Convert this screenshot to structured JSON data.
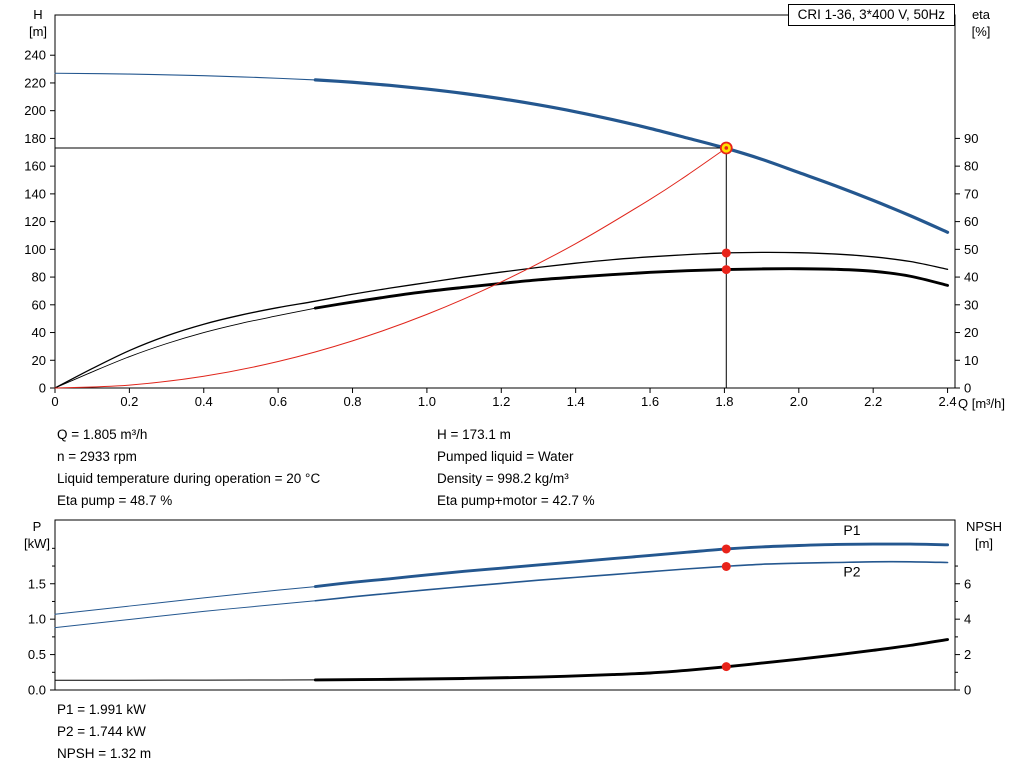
{
  "title_box": {
    "label": "CRI 1-36, 3*400 V, 50Hz"
  },
  "colors": {
    "curve_blue": "#24578f",
    "curve_black": "#000000",
    "curve_red": "#e0251b",
    "dot_red": "#e8231a",
    "op_yellow": "#ffe000",
    "axis": "#000000"
  },
  "top_info": {
    "left": [
      "Q = 1.805 m³/h",
      "n = 2933 rpm",
      "Liquid temperature during operation = 20 °C",
      "Eta pump = 48.7 %"
    ],
    "right": [
      "H = 173.1 m",
      "Pumped liquid = Water",
      "Density = 998.2 kg/m³",
      "Eta pump+motor = 42.7 %"
    ]
  },
  "bottom_info": [
    "P1 = 1.991 kW",
    "P2 = 1.744 kW",
    "NPSH = 1.32 m"
  ],
  "chart_data": [
    {
      "type": "line",
      "name": "pump-performance-chart",
      "title": "CRI 1-36, 3*400 V, 50Hz",
      "x": {
        "label": "Q [m³/h]",
        "range": [
          0,
          2.42
        ],
        "ticks": [
          0,
          0.2,
          0.4,
          0.6,
          0.8,
          1.0,
          1.2,
          1.4,
          1.6,
          1.8,
          2.0,
          2.2,
          2.4
        ],
        "tick_labels": [
          "0",
          "0.2",
          "0.4",
          "0.6",
          "0.8",
          "1.0",
          "1.2",
          "1.4",
          "1.6",
          "1.8",
          "2.0",
          "2.2",
          "2.4"
        ]
      },
      "y_left": {
        "label_lines": [
          "H",
          "[m]"
        ],
        "range": [
          0,
          269
        ],
        "ticks": [
          0,
          20,
          40,
          60,
          80,
          100,
          120,
          140,
          160,
          180,
          200,
          220,
          240
        ],
        "tick_labels": [
          "0",
          "20",
          "40",
          "60",
          "80",
          "100",
          "120",
          "140",
          "160",
          "180",
          "200",
          "220",
          "240"
        ],
        "minor_ticks": []
      },
      "y_right": {
        "label_lines": [
          "eta",
          "[%]"
        ],
        "range": [
          0,
          134.5
        ],
        "ticks": [
          0,
          10,
          20,
          30,
          40,
          50,
          60,
          70,
          80,
          90
        ],
        "tick_labels": [
          "0",
          "10",
          "20",
          "30",
          "40",
          "50",
          "60",
          "70",
          "80",
          "90"
        ],
        "minor_ticks": []
      },
      "crosshair": {
        "h_value": 173.1,
        "h_from": 0,
        "h_to": 1.805,
        "v_x": 1.805,
        "v_from": 0,
        "v_to": 173.1
      },
      "series": [
        {
          "name": "hq-out-of-range",
          "axis": "left",
          "color": "#24578f",
          "width": 1.1,
          "points": [
            [
              0,
              227
            ],
            [
              0.2,
              226.4
            ],
            [
              0.4,
              225.2
            ],
            [
              0.55,
              223.9
            ],
            [
              0.7,
              222.2
            ]
          ]
        },
        {
          "name": "hq-curve",
          "axis": "left",
          "color": "#24578f",
          "width": 3.2,
          "points": [
            [
              0.7,
              222.2
            ],
            [
              0.8,
              220.5
            ],
            [
              0.9,
              218.3
            ],
            [
              1.0,
              215.6
            ],
            [
              1.1,
              212.4
            ],
            [
              1.2,
              208.6
            ],
            [
              1.3,
              204.2
            ],
            [
              1.4,
              199.2
            ],
            [
              1.5,
              193.5
            ],
            [
              1.6,
              187.2
            ],
            [
              1.7,
              180.3
            ],
            [
              1.8,
              173.2
            ],
            [
              1.9,
              165.0
            ],
            [
              2.0,
              155.4
            ],
            [
              2.1,
              145.7
            ],
            [
              2.2,
              135.3
            ],
            [
              2.3,
              124.2
            ],
            [
              2.4,
              112.3
            ]
          ]
        },
        {
          "name": "eta-pump-curve",
          "axis": "right",
          "color": "#000000",
          "width": 1.3,
          "points": [
            [
              0,
              0
            ],
            [
              0.1,
              7
            ],
            [
              0.2,
              13.5
            ],
            [
              0.3,
              18.8
            ],
            [
              0.4,
              23
            ],
            [
              0.5,
              26.3
            ],
            [
              0.6,
              29
            ],
            [
              0.7,
              31.3
            ],
            [
              0.8,
              33.8
            ],
            [
              0.9,
              36
            ],
            [
              1.0,
              38
            ],
            [
              1.1,
              40
            ],
            [
              1.2,
              41.8
            ],
            [
              1.3,
              43.5
            ],
            [
              1.4,
              45
            ],
            [
              1.5,
              46.3
            ],
            [
              1.6,
              47.3
            ],
            [
              1.7,
              48.1
            ],
            [
              1.8,
              48.7
            ],
            [
              1.9,
              48.9
            ],
            [
              2.0,
              48.8
            ],
            [
              2.1,
              48.3
            ],
            [
              2.2,
              47.3
            ],
            [
              2.3,
              45.6
            ],
            [
              2.4,
              42.8
            ]
          ]
        },
        {
          "name": "eta-pump-motor-out-of-range",
          "axis": "right",
          "color": "#000000",
          "width": 0.9,
          "points": [
            [
              0,
              0
            ],
            [
              0.1,
              5.8
            ],
            [
              0.2,
              11.3
            ],
            [
              0.3,
              16
            ],
            [
              0.4,
              20
            ],
            [
              0.5,
              23.3
            ],
            [
              0.6,
              26.1
            ],
            [
              0.7,
              28.8
            ]
          ]
        },
        {
          "name": "eta-pump-motor-curve",
          "axis": "right",
          "color": "#000000",
          "width": 2.9,
          "points": [
            [
              0.7,
              28.8
            ],
            [
              0.8,
              31
            ],
            [
              0.9,
              33
            ],
            [
              1.0,
              34.8
            ],
            [
              1.1,
              36.3
            ],
            [
              1.2,
              37.7
            ],
            [
              1.3,
              39
            ],
            [
              1.4,
              40
            ],
            [
              1.5,
              40.9
            ],
            [
              1.6,
              41.7
            ],
            [
              1.7,
              42.3
            ],
            [
              1.8,
              42.7
            ],
            [
              1.9,
              42.95
            ],
            [
              2.0,
              43
            ],
            [
              2.1,
              42.8
            ],
            [
              2.2,
              42.1
            ],
            [
              2.3,
              40.3
            ],
            [
              2.4,
              37
            ]
          ]
        },
        {
          "name": "system-curve",
          "axis": "left",
          "color": "#e0251b",
          "width": 1.0,
          "points": [
            [
              0,
              0
            ],
            [
              0.2,
              2.1
            ],
            [
              0.4,
              8.5
            ],
            [
              0.6,
              19.1
            ],
            [
              0.8,
              34
            ],
            [
              1.0,
              53.1
            ],
            [
              1.2,
              76.5
            ],
            [
              1.4,
              104.1
            ],
            [
              1.6,
              136
            ],
            [
              1.7,
              153.5
            ],
            [
              1.805,
              173.1
            ]
          ]
        }
      ],
      "markers": [
        {
          "name": "eta-pump-dot",
          "x": 1.805,
          "value": 48.7,
          "axis": "right",
          "kind": "dot"
        },
        {
          "name": "eta-pump-motor-dot",
          "x": 1.805,
          "value": 42.7,
          "axis": "right",
          "kind": "dot"
        },
        {
          "name": "duty-point-marker",
          "x": 1.805,
          "value": 173.1,
          "axis": "left",
          "kind": "op"
        }
      ],
      "labels": []
    },
    {
      "type": "line",
      "name": "power-npsh-chart",
      "x": {
        "label": "",
        "range": [
          0,
          2.42
        ],
        "ticks": [],
        "tick_labels": []
      },
      "y_left": {
        "label_lines": [
          "P",
          "[kW]"
        ],
        "range": [
          0,
          2.4
        ],
        "ticks": [
          0,
          0.5,
          1.0,
          1.5
        ],
        "tick_labels": [
          "0.0",
          "0.5",
          "1.0",
          "1.5"
        ],
        "minor_ticks": [
          0.25,
          0.75,
          1.25,
          1.75,
          2.0
        ]
      },
      "y_right": {
        "label_lines": [
          "NPSH",
          "[m]"
        ],
        "range": [
          0,
          9.6
        ],
        "ticks": [
          0,
          2,
          4,
          6
        ],
        "tick_labels": [
          "0",
          "2",
          "4",
          "6"
        ],
        "minor_ticks": [
          1,
          3,
          5,
          7
        ]
      },
      "series": [
        {
          "name": "p1-out-of-range",
          "axis": "left",
          "color": "#24578f",
          "width": 1.0,
          "points": [
            [
              0,
              1.07
            ],
            [
              0.2,
              1.185
            ],
            [
              0.4,
              1.3
            ],
            [
              0.6,
              1.41
            ],
            [
              0.7,
              1.46
            ]
          ]
        },
        {
          "name": "p1-curve",
          "axis": "left",
          "color": "#24578f",
          "width": 2.9,
          "points": [
            [
              0.7,
              1.46
            ],
            [
              0.8,
              1.52
            ],
            [
              0.9,
              1.57
            ],
            [
              1.0,
              1.625
            ],
            [
              1.1,
              1.675
            ],
            [
              1.2,
              1.72
            ],
            [
              1.3,
              1.765
            ],
            [
              1.4,
              1.81
            ],
            [
              1.5,
              1.855
            ],
            [
              1.6,
              1.9
            ],
            [
              1.7,
              1.945
            ],
            [
              1.8,
              1.99
            ],
            [
              1.9,
              2.02
            ],
            [
              2.0,
              2.04
            ],
            [
              2.1,
              2.055
            ],
            [
              2.2,
              2.06
            ],
            [
              2.3,
              2.06
            ],
            [
              2.4,
              2.05
            ]
          ]
        },
        {
          "name": "p2-out-of-range",
          "axis": "left",
          "color": "#24578f",
          "width": 1.0,
          "points": [
            [
              0,
              0.88
            ],
            [
              0.2,
              0.995
            ],
            [
              0.4,
              1.11
            ],
            [
              0.6,
              1.21
            ],
            [
              0.7,
              1.26
            ]
          ]
        },
        {
          "name": "p2-curve",
          "axis": "left",
          "color": "#24578f",
          "width": 1.6,
          "points": [
            [
              0.7,
              1.26
            ],
            [
              0.8,
              1.315
            ],
            [
              0.9,
              1.365
            ],
            [
              1.0,
              1.415
            ],
            [
              1.1,
              1.46
            ],
            [
              1.2,
              1.505
            ],
            [
              1.3,
              1.55
            ],
            [
              1.4,
              1.59
            ],
            [
              1.5,
              1.63
            ],
            [
              1.6,
              1.67
            ],
            [
              1.7,
              1.71
            ],
            [
              1.8,
              1.745
            ],
            [
              1.9,
              1.775
            ],
            [
              2.0,
              1.79
            ],
            [
              2.1,
              1.8
            ],
            [
              2.2,
              1.81
            ],
            [
              2.3,
              1.81
            ],
            [
              2.4,
              1.8
            ]
          ]
        },
        {
          "name": "npsh-out-of-range",
          "axis": "right",
          "color": "#000000",
          "width": 1.0,
          "points": [
            [
              0,
              0.55
            ],
            [
              0.3,
              0.555
            ],
            [
              0.6,
              0.565
            ],
            [
              0.7,
              0.57
            ]
          ]
        },
        {
          "name": "npsh-curve",
          "axis": "right",
          "color": "#000000",
          "width": 2.9,
          "points": [
            [
              0.7,
              0.57
            ],
            [
              0.9,
              0.6
            ],
            [
              1.1,
              0.65
            ],
            [
              1.3,
              0.73
            ],
            [
              1.5,
              0.87
            ],
            [
              1.6,
              0.96
            ],
            [
              1.7,
              1.11
            ],
            [
              1.8,
              1.3
            ],
            [
              1.9,
              1.52
            ],
            [
              2.0,
              1.74
            ],
            [
              2.1,
              1.98
            ],
            [
              2.2,
              2.24
            ],
            [
              2.3,
              2.52
            ],
            [
              2.4,
              2.85
            ]
          ]
        }
      ],
      "markers": [
        {
          "name": "p1-dot",
          "x": 1.805,
          "value": 1.991,
          "axis": "left",
          "kind": "dot"
        },
        {
          "name": "p2-dot",
          "x": 1.805,
          "value": 1.744,
          "axis": "left",
          "kind": "dot"
        },
        {
          "name": "npsh-dot",
          "x": 1.805,
          "value": 1.32,
          "axis": "right",
          "kind": "dot"
        }
      ],
      "labels": [
        {
          "text": "P1",
          "x": 2.12,
          "value": 2.19,
          "axis": "left",
          "color": "#24578f"
        },
        {
          "text": "P2",
          "x": 2.12,
          "value": 1.6,
          "axis": "left",
          "color": "#24578f"
        }
      ]
    }
  ]
}
